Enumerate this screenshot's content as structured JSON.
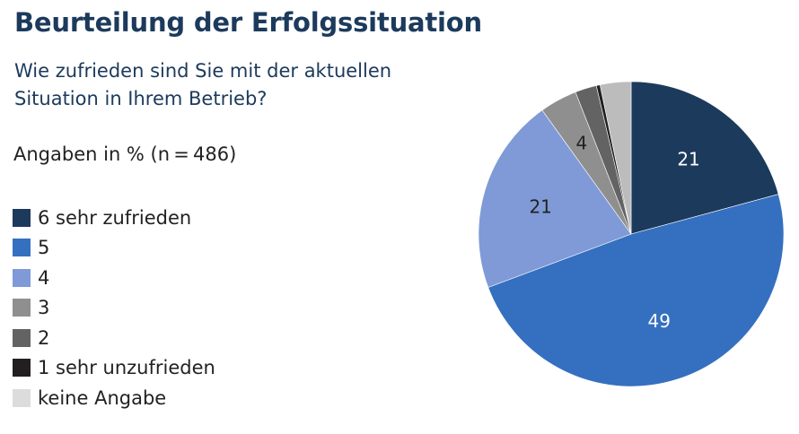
{
  "title": "Beurteilung der Erfolgssituation",
  "subtitle_lines": [
    "Wie zufrieden sind Sie mit der aktuellen",
    "Situation in Ihrem Betrieb?"
  ],
  "note": "Angaben in % (n = 486)",
  "chart_data": {
    "type": "pie",
    "title": "Beurteilung der Erfolgssituation",
    "subtitle": "Wie zufrieden sind Sie mit der aktuellen Situation in Ihrem Betrieb?",
    "unit": "%",
    "n": 486,
    "legend_position": "left",
    "start_angle": "12 o'clock",
    "direction": "clockwise",
    "slices": [
      {
        "label": "6 sehr zufrieden",
        "value": 21,
        "color": "#1c3a5c",
        "data_label": "21",
        "label_color": "#ffffff"
      },
      {
        "label": "5",
        "value": 49,
        "color": "#3570c0",
        "data_label": "49",
        "label_color": "#ffffff"
      },
      {
        "label": "4",
        "value": 21,
        "color": "#7f9ad6",
        "data_label": "21",
        "label_color": "#222222"
      },
      {
        "label": "3",
        "value": 4,
        "color": "#8f8f8f",
        "data_label": "4",
        "label_color": "#222222"
      },
      {
        "label": "2",
        "value": 2.3,
        "color": "#636363",
        "data_label": "",
        "label_color": "#ffffff"
      },
      {
        "label": "1 sehr unzufrieden",
        "value": 0.4,
        "color": "#231f20",
        "data_label": "",
        "label_color": "#ffffff"
      },
      {
        "label": "keine Angabe",
        "value": 3.3,
        "color": "#bcbcbc",
        "legend_color": "#dcdcdc",
        "data_label": "",
        "label_color": "#222222"
      }
    ]
  }
}
